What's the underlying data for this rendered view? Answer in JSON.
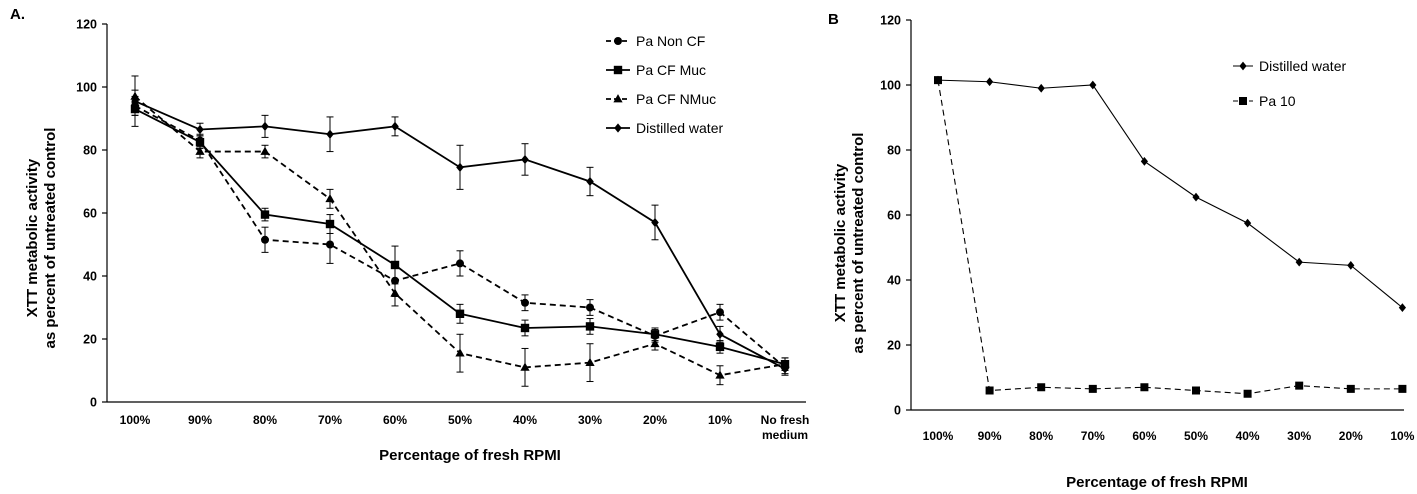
{
  "chart_data": [
    {
      "panel_label": "A.",
      "type": "line",
      "categories": [
        "100%",
        "90%",
        "80%",
        "70%",
        "60%",
        "50%",
        "40%",
        "30%",
        "20%",
        "10%",
        "No fresh medium"
      ],
      "xlabel": "Percentage of fresh RPMI",
      "ylabel": "XTT metabolic activity as percent of untreated control",
      "ylim": [
        0,
        120
      ],
      "yticks": [
        0,
        20,
        40,
        60,
        80,
        100,
        120
      ],
      "legend_position": "top-right",
      "series": [
        {
          "name": "Pa Non CF",
          "dash": "dashed",
          "marker": "circle",
          "values": [
            94,
            83,
            51.5,
            50,
            38.5,
            44,
            31.5,
            30,
            21,
            28.5,
            11
          ],
          "errors": [
            3,
            2,
            4,
            6,
            5,
            4,
            2.5,
            2.5,
            2,
            2.5,
            2
          ]
        },
        {
          "name": "Pa CF Muc",
          "dash": "solid",
          "marker": "square",
          "values": [
            93,
            82.5,
            59.5,
            56.5,
            43.5,
            28,
            23.5,
            24,
            21.5,
            17.5,
            12
          ],
          "errors": [
            2,
            2,
            2,
            3,
            6,
            3,
            2.5,
            2.5,
            2,
            2,
            2
          ]
        },
        {
          "name": "Pa CF NMuc",
          "dash": "dashed",
          "marker": "triangle",
          "values": [
            97,
            79.5,
            79.5,
            64.5,
            34.5,
            15.5,
            11,
            12.5,
            18.5,
            8.5,
            12
          ],
          "errors": [
            2,
            2,
            2,
            3,
            4,
            6,
            6,
            6,
            2,
            3,
            2
          ]
        },
        {
          "name": "Distilled water",
          "dash": "solid",
          "marker": "diamond",
          "values": [
            95.5,
            86.5,
            87.5,
            85,
            87.5,
            74.5,
            77,
            70,
            57,
            21.5,
            10.5
          ],
          "errors": [
            8,
            2,
            3.5,
            5.5,
            3,
            7,
            5,
            4.5,
            5.5,
            2.5,
            2
          ]
        }
      ]
    },
    {
      "panel_label": "B",
      "type": "line",
      "categories": [
        "100%",
        "90%",
        "80%",
        "70%",
        "60%",
        "50%",
        "40%",
        "30%",
        "20%",
        "10%"
      ],
      "xlabel": "Percentage of fresh RPMI",
      "ylabel": "XTT metabolic activity as percent of untreated control",
      "ylim": [
        0,
        120
      ],
      "yticks": [
        0,
        20,
        40,
        60,
        80,
        100,
        120
      ],
      "legend_position": "top-right",
      "series": [
        {
          "name": "Distilled water",
          "dash": "solid",
          "marker": "diamond",
          "values": [
            101.5,
            101,
            99,
            100,
            76.5,
            65.5,
            57.5,
            45.5,
            44.5,
            31.5
          ]
        },
        {
          "name": "Pa 10",
          "dash": "dashed",
          "marker": "square",
          "values": [
            101.5,
            6,
            7,
            6.5,
            7,
            6,
            5,
            7.5,
            6.5,
            6.5
          ]
        }
      ]
    }
  ]
}
